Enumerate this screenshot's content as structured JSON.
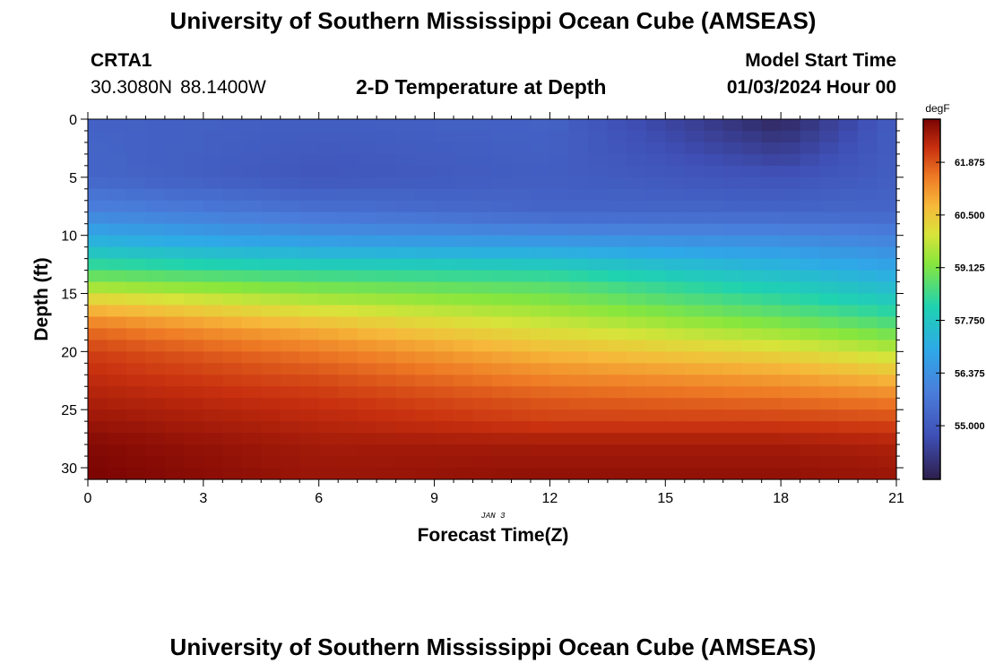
{
  "header": {
    "title": "University of Southern Mississippi Ocean Cube (AMSEAS)",
    "station_name": "CRTA1",
    "lat": "30.3080N",
    "lon": "88.1400W",
    "plot_title": "2-D Temperature at Depth",
    "model_label": "Model Start Time",
    "model_date": "01/03/2024 Hour 00"
  },
  "footer": {
    "title": "University of Southern Mississippi Ocean Cube (AMSEAS)"
  },
  "chart_data": {
    "type": "heatmap",
    "title": "2-D Temperature at Depth",
    "xlabel": "Forecast Time(Z)",
    "ylabel": "Depth (ft)",
    "date_label": "JAN 3",
    "xlim": [
      0,
      21
    ],
    "ylim": [
      0,
      31
    ],
    "y_inverted": true,
    "x_ticks": [
      0,
      3,
      6,
      9,
      12,
      15,
      18,
      21
    ],
    "y_ticks": [
      0,
      5,
      10,
      15,
      20,
      25,
      30
    ],
    "time_steps": 42,
    "depth_levels": 31,
    "colorbar": {
      "unit": "degF",
      "min": 53.6,
      "max": 63.0,
      "ticks": [
        "61.875",
        "60.500",
        "59.125",
        "57.750",
        "56.375",
        "55.000"
      ]
    },
    "profile_depths_ft": [
      0,
      5,
      8,
      10,
      12,
      14,
      16,
      18,
      20,
      22,
      24,
      26,
      28,
      31
    ],
    "profile_temps_degF": {
      "hour_0": [
        55.2,
        55.3,
        56.0,
        57.0,
        58.0,
        59.2,
        60.6,
        61.6,
        62.1,
        62.3,
        62.5,
        62.7,
        62.9,
        63.0
      ],
      "hour_6": [
        55.1,
        54.9,
        55.6,
        56.4,
        57.6,
        58.8,
        59.8,
        60.8,
        61.5,
        61.9,
        62.2,
        62.4,
        62.6,
        62.7
      ],
      "hour_12": [
        55.2,
        55.1,
        55.3,
        56.2,
        57.5,
        58.6,
        59.3,
        60.0,
        60.7,
        61.3,
        61.8,
        62.1,
        62.6,
        62.8
      ],
      "hour_18": [
        53.8,
        54.8,
        55.3,
        56.1,
        57.0,
        57.8,
        58.5,
        59.3,
        60.2,
        61.0,
        61.6,
        62.1,
        62.6,
        62.8
      ],
      "hour_21": [
        55.1,
        55.1,
        55.3,
        55.9,
        56.6,
        57.3,
        58.0,
        58.8,
        59.7,
        60.6,
        61.4,
        62.0,
        62.5,
        62.7
      ]
    }
  }
}
